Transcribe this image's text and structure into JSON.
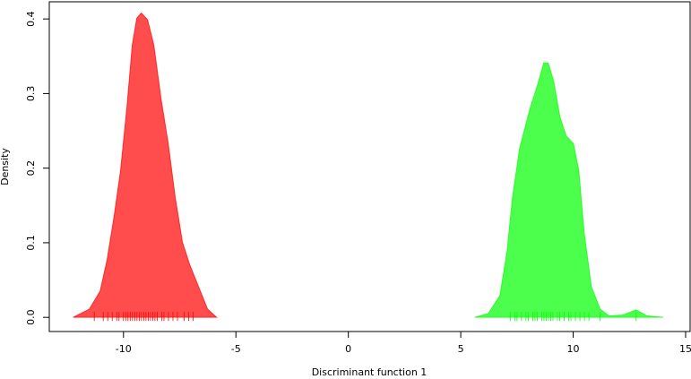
{
  "chart_data": {
    "type": "density",
    "x_label": "Discriminant function 1",
    "y_label": "Density",
    "xlim": [
      -13.3,
      15.2
    ],
    "ylim": [
      -0.019,
      0.423
    ],
    "xticks": [
      -10,
      -5,
      0,
      5,
      10,
      15
    ],
    "yticks": [
      {
        "value": 0,
        "label": "0.0"
      },
      {
        "value": 0.1,
        "label": "0.1"
      },
      {
        "value": 0.2,
        "label": "0.2"
      },
      {
        "value": 0.3,
        "label": "0.3"
      },
      {
        "value": 0.4,
        "label": "0.4"
      }
    ],
    "fill_opacity": 0.7,
    "series": [
      {
        "color": "#ff0000",
        "x": [
          -12.24,
          -11.52,
          -11.04,
          -10.73,
          -10.41,
          -10.13,
          -9.85,
          -9.61,
          -9.41,
          -9.21,
          -8.93,
          -8.65,
          -8.33,
          -8.01,
          -7.7,
          -7.38,
          -7.06,
          -6.66,
          -6.26,
          -5.86
        ],
        "values": [
          0,
          0.011,
          0.035,
          0.077,
          0.137,
          0.197,
          0.281,
          0.365,
          0.401,
          0.408,
          0.399,
          0.365,
          0.293,
          0.233,
          0.161,
          0.101,
          0.071,
          0.041,
          0.011,
          0
        ],
        "rug": [
          -11.3,
          -10.9,
          -10.7,
          -10.5,
          -10.3,
          -10.2,
          -10.0,
          -9.9,
          -9.8,
          -9.7,
          -9.6,
          -9.5,
          -9.4,
          -9.3,
          -9.2,
          -9.1,
          -9.0,
          -8.9,
          -8.8,
          -8.7,
          -8.6,
          -8.5,
          -8.3,
          -8.2,
          -8.0,
          -7.8,
          -7.6,
          -7.3,
          -7.1,
          -6.9
        ]
      },
      {
        "color": "#00ff00",
        "x": [
          5.62,
          6.22,
          6.74,
          7.06,
          7.3,
          7.62,
          8.09,
          8.41,
          8.69,
          8.89,
          9.13,
          9.41,
          9.69,
          10.01,
          10.25,
          10.49,
          10.81,
          11.2,
          11.6,
          12.2,
          12.8,
          13.28,
          14.0
        ],
        "values": [
          0,
          0.005,
          0.029,
          0.089,
          0.161,
          0.227,
          0.281,
          0.311,
          0.341,
          0.341,
          0.317,
          0.269,
          0.243,
          0.233,
          0.197,
          0.113,
          0.041,
          0.011,
          0.002,
          0.003,
          0.01,
          0.002,
          0
        ],
        "rug": [
          7.2,
          7.4,
          7.5,
          7.7,
          7.9,
          8.0,
          8.2,
          8.3,
          8.4,
          8.6,
          8.7,
          8.8,
          8.9,
          9.0,
          9.1,
          9.3,
          9.4,
          9.6,
          9.8,
          9.9,
          10.1,
          10.3,
          10.5,
          10.7,
          11.2,
          12.8
        ]
      }
    ]
  }
}
